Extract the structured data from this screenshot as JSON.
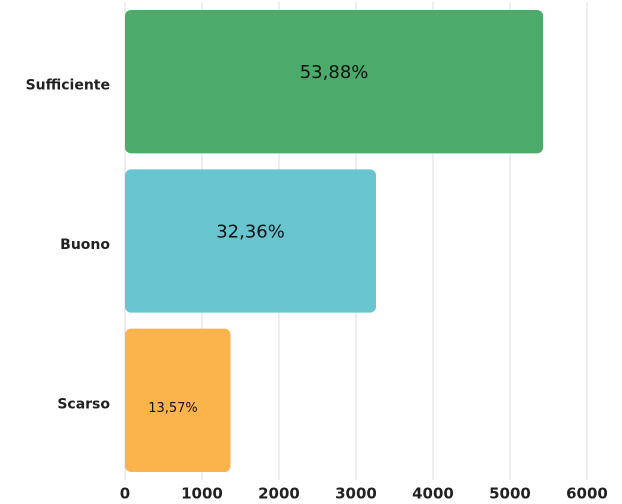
{
  "chart_data": {
    "type": "hbar",
    "categories": [
      "Sufficiente",
      "Buono",
      "Scarso"
    ],
    "values": [
      5430,
      3260,
      1370
    ],
    "colors": [
      "#4caa6a",
      "#68c5cf",
      "#fbb34c"
    ],
    "annotations": [
      "53,88%",
      "32,36%",
      "13,57%"
    ],
    "xlim": [
      0,
      6000
    ],
    "xticks": [
      0,
      1000,
      2000,
      3000,
      4000,
      5000,
      6000
    ],
    "grid": true
  }
}
